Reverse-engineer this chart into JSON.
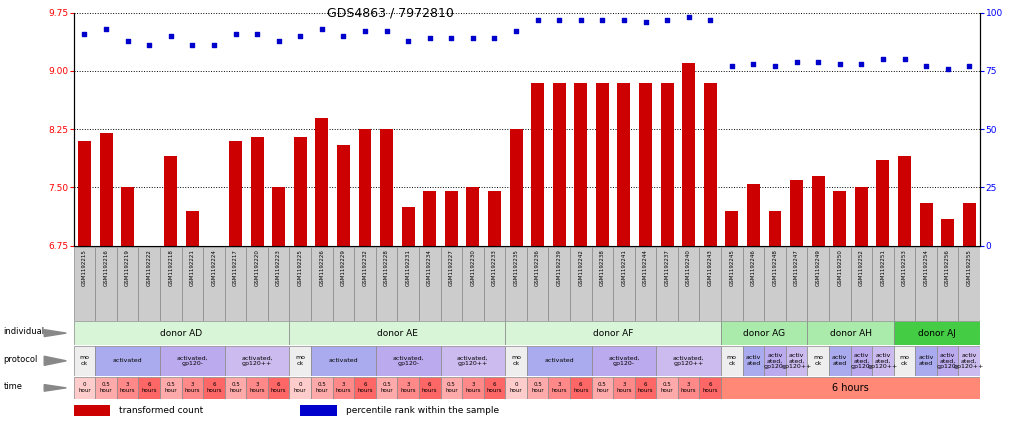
{
  "title": "GDS4863 / 7972810",
  "samples": [
    "GSM1192215",
    "GSM1192216",
    "GSM1192219",
    "GSM1192222",
    "GSM1192218",
    "GSM1192221",
    "GSM1192224",
    "GSM1192217",
    "GSM1192220",
    "GSM1192223",
    "GSM1192225",
    "GSM1192226",
    "GSM1192229",
    "GSM1192232",
    "GSM1192228",
    "GSM1192231",
    "GSM1192234",
    "GSM1192227",
    "GSM1192230",
    "GSM1192233",
    "GSM1192235",
    "GSM1192236",
    "GSM1192239",
    "GSM1192242",
    "GSM1192238",
    "GSM1192241",
    "GSM1192244",
    "GSM1192237",
    "GSM1192240",
    "GSM1192243",
    "GSM1192245",
    "GSM1192246",
    "GSM1192248",
    "GSM1192247",
    "GSM1192249",
    "GSM1192250",
    "GSM1192252",
    "GSM1192251",
    "GSM1192253",
    "GSM1192254",
    "GSM1192256",
    "GSM1192255"
  ],
  "bar_values": [
    8.1,
    8.2,
    7.5,
    6.65,
    7.9,
    7.2,
    6.65,
    8.1,
    8.15,
    7.5,
    8.15,
    8.4,
    8.05,
    8.25,
    8.25,
    7.25,
    7.45,
    7.45,
    7.5,
    7.45,
    8.25,
    8.85,
    8.85,
    8.85,
    8.85,
    8.85,
    8.85,
    8.85,
    9.1,
    8.85,
    7.2,
    7.55,
    7.2,
    7.6,
    7.65,
    7.45,
    7.5,
    7.85,
    7.9,
    7.3,
    7.1,
    7.3
  ],
  "dot_values": [
    91,
    93,
    88,
    86,
    90,
    86,
    86,
    91,
    91,
    88,
    90,
    93,
    90,
    92,
    92,
    88,
    89,
    89,
    89,
    89,
    92,
    97,
    97,
    97,
    97,
    97,
    96,
    97,
    98,
    97,
    77,
    78,
    77,
    79,
    79,
    78,
    78,
    80,
    80,
    77,
    76,
    77
  ],
  "ylim_left": [
    6.75,
    9.75
  ],
  "ylim_right": [
    0,
    100
  ],
  "yticks_left": [
    6.75,
    7.5,
    8.25,
    9.0,
    9.75
  ],
  "yticks_right": [
    0,
    25,
    50,
    75,
    100
  ],
  "bar_color": "#cc0000",
  "dot_color": "#0000cc",
  "bg_color": "#ffffff",
  "individual_row": [
    {
      "label": "donor AD",
      "start": 0,
      "end": 9,
      "color": "#d8f5d8"
    },
    {
      "label": "donor AE",
      "start": 10,
      "end": 19,
      "color": "#d8f5d8"
    },
    {
      "label": "donor AF",
      "start": 20,
      "end": 29,
      "color": "#d8f5d8"
    },
    {
      "label": "donor AG",
      "start": 30,
      "end": 33,
      "color": "#aaeaaa"
    },
    {
      "label": "donor AH",
      "start": 34,
      "end": 37,
      "color": "#aaeaaa"
    },
    {
      "label": "donor AJ",
      "start": 38,
      "end": 41,
      "color": "#44cc44"
    }
  ],
  "protocol_row": [
    {
      "label": "mo\nck",
      "start": 0,
      "end": 0,
      "color": "#eeeeee"
    },
    {
      "label": "activated",
      "start": 1,
      "end": 3,
      "color": "#aaaaee"
    },
    {
      "label": "activated,\ngp120-",
      "start": 4,
      "end": 6,
      "color": "#bbaaee"
    },
    {
      "label": "activated,\ngp120++",
      "start": 7,
      "end": 9,
      "color": "#ccbbee"
    },
    {
      "label": "mo\nck",
      "start": 10,
      "end": 10,
      "color": "#eeeeee"
    },
    {
      "label": "activated",
      "start": 11,
      "end": 13,
      "color": "#aaaaee"
    },
    {
      "label": "activated,\ngp120-",
      "start": 14,
      "end": 16,
      "color": "#bbaaee"
    },
    {
      "label": "activated,\ngp120++",
      "start": 17,
      "end": 19,
      "color": "#ccbbee"
    },
    {
      "label": "mo\nck",
      "start": 20,
      "end": 20,
      "color": "#eeeeee"
    },
    {
      "label": "activated",
      "start": 21,
      "end": 23,
      "color": "#aaaaee"
    },
    {
      "label": "activated,\ngp120-",
      "start": 24,
      "end": 26,
      "color": "#bbaaee"
    },
    {
      "label": "activated,\ngp120++",
      "start": 27,
      "end": 29,
      "color": "#ccbbee"
    },
    {
      "label": "mo\nck",
      "start": 30,
      "end": 30,
      "color": "#eeeeee"
    },
    {
      "label": "activ\nated",
      "start": 31,
      "end": 31,
      "color": "#aaaaee"
    },
    {
      "label": "activ\nated,\ngp120-",
      "start": 32,
      "end": 32,
      "color": "#bbaaee"
    },
    {
      "label": "activ\nated,\ngp120++",
      "start": 33,
      "end": 33,
      "color": "#ccbbee"
    },
    {
      "label": "mo\nck",
      "start": 34,
      "end": 34,
      "color": "#eeeeee"
    },
    {
      "label": "activ\nated",
      "start": 35,
      "end": 35,
      "color": "#aaaaee"
    },
    {
      "label": "activ\nated,\ngp120-",
      "start": 36,
      "end": 36,
      "color": "#bbaaee"
    },
    {
      "label": "activ\nated,\ngp120++",
      "start": 37,
      "end": 37,
      "color": "#ccbbee"
    },
    {
      "label": "mo\nck",
      "start": 38,
      "end": 38,
      "color": "#eeeeee"
    },
    {
      "label": "activ\nated",
      "start": 39,
      "end": 39,
      "color": "#aaaaee"
    },
    {
      "label": "activ\nated,\ngp120-",
      "start": 40,
      "end": 40,
      "color": "#bbaaee"
    },
    {
      "label": "activ\nated,\ngp120++",
      "start": 41,
      "end": 41,
      "color": "#ccbbee"
    }
  ],
  "time_row_data": [
    {
      "label": "0\nhour",
      "start": 0,
      "end": 0,
      "color": "#ffcccc"
    },
    {
      "label": "0.5\nhour",
      "start": 1,
      "end": 1,
      "color": "#ffaaaa"
    },
    {
      "label": "3\nhours",
      "start": 2,
      "end": 2,
      "color": "#ff8888"
    },
    {
      "label": "6\nhours",
      "start": 3,
      "end": 3,
      "color": "#ff6666"
    },
    {
      "label": "0.5\nhour",
      "start": 4,
      "end": 4,
      "color": "#ffaaaa"
    },
    {
      "label": "3\nhours",
      "start": 5,
      "end": 5,
      "color": "#ff8888"
    },
    {
      "label": "6\nhours",
      "start": 6,
      "end": 6,
      "color": "#ff6666"
    },
    {
      "label": "0.5\nhour",
      "start": 7,
      "end": 7,
      "color": "#ffaaaa"
    },
    {
      "label": "3\nhours",
      "start": 8,
      "end": 8,
      "color": "#ff8888"
    },
    {
      "label": "6\nhours",
      "start": 9,
      "end": 9,
      "color": "#ff6666"
    },
    {
      "label": "0\nhour",
      "start": 10,
      "end": 10,
      "color": "#ffcccc"
    },
    {
      "label": "0.5\nhour",
      "start": 11,
      "end": 11,
      "color": "#ffaaaa"
    },
    {
      "label": "3\nhours",
      "start": 12,
      "end": 12,
      "color": "#ff8888"
    },
    {
      "label": "6\nhours",
      "start": 13,
      "end": 13,
      "color": "#ff6666"
    },
    {
      "label": "0.5\nhour",
      "start": 14,
      "end": 14,
      "color": "#ffaaaa"
    },
    {
      "label": "3\nhours",
      "start": 15,
      "end": 15,
      "color": "#ff8888"
    },
    {
      "label": "6\nhours",
      "start": 16,
      "end": 16,
      "color": "#ff6666"
    },
    {
      "label": "0.5\nhour",
      "start": 17,
      "end": 17,
      "color": "#ffaaaa"
    },
    {
      "label": "3\nhours",
      "start": 18,
      "end": 18,
      "color": "#ff8888"
    },
    {
      "label": "6\nhours",
      "start": 19,
      "end": 19,
      "color": "#ff6666"
    },
    {
      "label": "0\nhour",
      "start": 20,
      "end": 20,
      "color": "#ffcccc"
    },
    {
      "label": "0.5\nhour",
      "start": 21,
      "end": 21,
      "color": "#ffaaaa"
    },
    {
      "label": "3\nhours",
      "start": 22,
      "end": 22,
      "color": "#ff8888"
    },
    {
      "label": "6\nhours",
      "start": 23,
      "end": 23,
      "color": "#ff6666"
    },
    {
      "label": "0.5\nhour",
      "start": 24,
      "end": 24,
      "color": "#ffaaaa"
    },
    {
      "label": "3\nhours",
      "start": 25,
      "end": 25,
      "color": "#ff8888"
    },
    {
      "label": "6\nhours",
      "start": 26,
      "end": 26,
      "color": "#ff6666"
    },
    {
      "label": "0.5\nhour",
      "start": 27,
      "end": 27,
      "color": "#ffaaaa"
    },
    {
      "label": "3\nhours",
      "start": 28,
      "end": 28,
      "color": "#ff8888"
    },
    {
      "label": "6\nhours",
      "start": 29,
      "end": 29,
      "color": "#ff6666"
    }
  ],
  "time_big_label": {
    "start": 30,
    "end": 41,
    "label": "6 hours",
    "color": "#ff8877"
  },
  "legend_items": [
    {
      "color": "#cc0000",
      "label": "transformed count"
    },
    {
      "color": "#0000cc",
      "label": "percentile rank within the sample"
    }
  ],
  "left_labels": [
    "individual",
    "protocol",
    "time"
  ],
  "sample_bg": "#cccccc",
  "chart_facecolor": "#ffffff"
}
